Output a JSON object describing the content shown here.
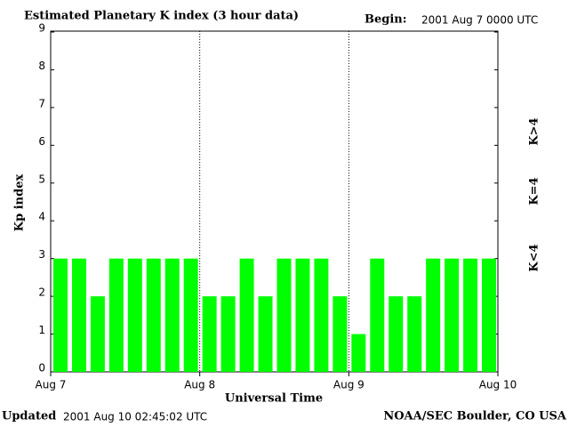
{
  "chart_data": {
    "type": "bar",
    "title": "Estimated Planetary K index (3 hour data)",
    "begin_label": "Begin:",
    "begin": "2001 Aug 7 0000 UTC",
    "ylabel": "Kp index",
    "xlabel": "Universal Time",
    "updated_label": "Updated",
    "updated": "2001 Aug 10 02:45:02 UTC",
    "source": "NOAA/SEC Boulder, CO USA",
    "x_labels": [
      "Aug 7",
      "Aug 8",
      "Aug 9",
      "Aug 10"
    ],
    "values": [
      3,
      3,
      2,
      3,
      3,
      3,
      3,
      3,
      2,
      2,
      3,
      2,
      3,
      3,
      3,
      2,
      1,
      3,
      2,
      2,
      3,
      3,
      3,
      3
    ],
    "color": "#00ff00",
    "ylim": [
      0,
      9
    ],
    "yticks": [
      0,
      1,
      2,
      3,
      4,
      5,
      6,
      7,
      8,
      9
    ],
    "legend": [
      {
        "name": "K<4",
        "color": "#22ee22"
      },
      {
        "name": "K=4",
        "color": "#ffd700"
      },
      {
        "name": "K>4",
        "color": "#ff2a00"
      }
    ]
  }
}
